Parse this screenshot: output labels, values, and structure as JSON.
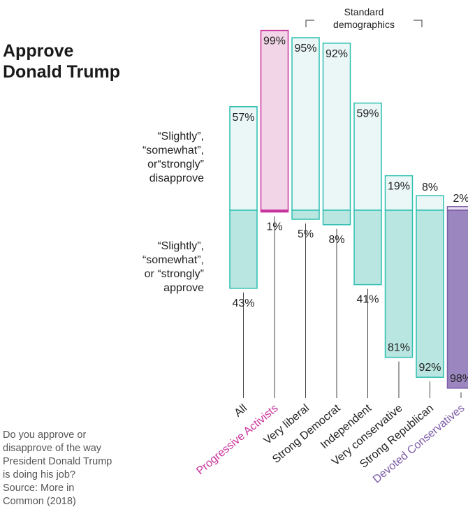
{
  "title_lines": [
    "Approve",
    "Donald Trump"
  ],
  "legend": {
    "disapprove_lines": [
      "“Slightly”,",
      "“somewhat”,",
      "or“strongly”",
      "disapprove"
    ],
    "approve_lines": [
      "“Slightly”,",
      "“somewhat”,",
      "or “strongly”",
      "approve"
    ]
  },
  "bracket": {
    "label_lines": [
      "Standard",
      "demographics"
    ],
    "spans": [
      "Very liberal",
      "Strong Republican"
    ]
  },
  "note_lines": [
    "Do you approve or",
    "disapprove of the way",
    "President Donald Trump",
    "is doing his job?",
    "Source: More in",
    "Common (2018)"
  ],
  "colors": {
    "teal": "#2ebfb0",
    "teal_light": "#eaf7f6",
    "teal_mid": "#b9e6e1",
    "magenta": "#c8329c",
    "magenta_light": "#f2d6e8",
    "purple": "#7a5aa6",
    "purple_fill": "#9b86bf",
    "purple_light": "#e7e0f1",
    "axis_line": "#444444"
  },
  "chart_data": {
    "type": "bar",
    "title": "Approve Donald Trump",
    "stacked": "diverging",
    "categories": [
      "All",
      "Progressive Activists",
      "Very liberal",
      "Strong Democrat",
      "Independent",
      "Very conservative",
      "Strong Republican",
      "Devoted Conservatives"
    ],
    "series": [
      {
        "name": "“Slightly”, “somewhat”, or“strongly” disapprove",
        "values": [
          57,
          99,
          95,
          92,
          59,
          19,
          8,
          2
        ]
      },
      {
        "name": "“Slightly”, “somewhat”, or “strongly” approve",
        "values": [
          43,
          1,
          5,
          8,
          41,
          81,
          92,
          98
        ]
      }
    ],
    "value_labels": {
      "disapprove": [
        "57%",
        "99%",
        "95%",
        "92%",
        "59%",
        "19%",
        "8%",
        "2%"
      ],
      "approve": [
        "43%",
        "1%",
        "5%",
        "8%",
        "41%",
        "81%",
        "92%",
        "98%"
      ]
    },
    "category_colors": [
      "teal",
      "magenta",
      "teal",
      "teal",
      "teal",
      "teal",
      "teal",
      "purple"
    ],
    "ylim": [
      0,
      100
    ],
    "grid": false,
    "legend": "left"
  }
}
